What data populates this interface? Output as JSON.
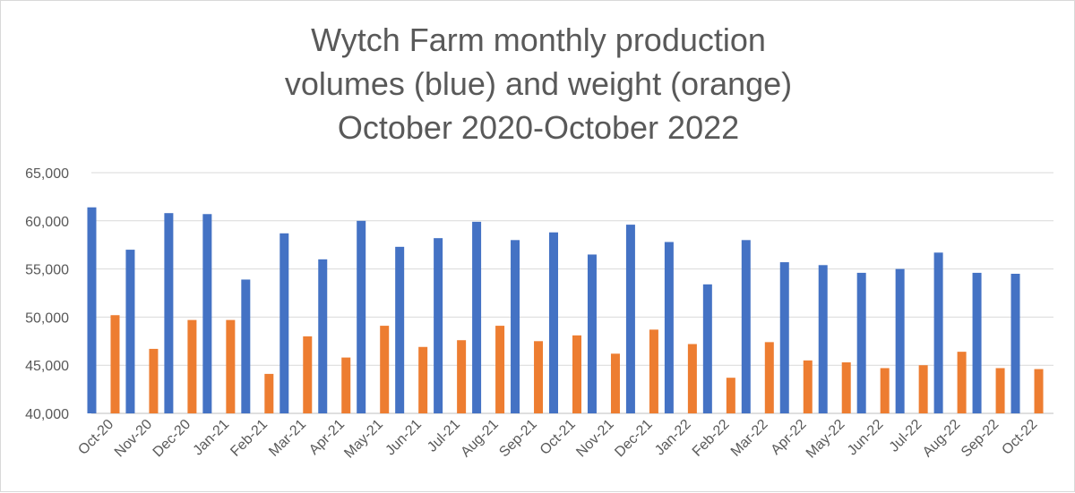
{
  "chart_data": {
    "type": "bar",
    "title_lines": [
      "Wytch Farm monthly production",
      "volumes (blue) and weight (orange)",
      "October 2020-October 2022"
    ],
    "xlabel": "",
    "ylabel": "",
    "ylim": [
      40000,
      65000
    ],
    "y_ticks": [
      40000,
      45000,
      50000,
      55000,
      60000,
      65000
    ],
    "y_tick_labels": [
      "40,000",
      "45,000",
      "50,000",
      "55,000",
      "60,000",
      "65,000"
    ],
    "grid": true,
    "legend": "none",
    "categories": [
      "Oct-20",
      "Nov-20",
      "Dec-20",
      "Jan-21",
      "Feb-21",
      "Mar-21",
      "Apr-21",
      "May-21",
      "Jun-21",
      "Jul-21",
      "Aug-21",
      "Sep-21",
      "Oct-21",
      "Nov-21",
      "Dec-21",
      "Jan-22",
      "Feb-22",
      "Mar-22",
      "Apr-22",
      "May-22",
      "Jun-22",
      "Jul-22",
      "Aug-22",
      "Sep-22",
      "Oct-22"
    ],
    "series": [
      {
        "color": "#4472c4",
        "values": [
          61400,
          57000,
          60800,
          60700,
          53900,
          58700,
          56000,
          60000,
          57300,
          58200,
          59900,
          58000,
          58800,
          56500,
          59600,
          57800,
          53400,
          58000,
          55700,
          55400,
          54600,
          55000,
          56700,
          54600,
          54500
        ]
      },
      {
        "color": "#ed7d31",
        "values": [
          50200,
          46700,
          49700,
          49700,
          44100,
          48000,
          45800,
          49100,
          46900,
          47600,
          49100,
          47500,
          48100,
          46200,
          48700,
          47200,
          43700,
          47400,
          45500,
          45300,
          44700,
          45000,
          46400,
          44700,
          44600
        ]
      }
    ]
  }
}
